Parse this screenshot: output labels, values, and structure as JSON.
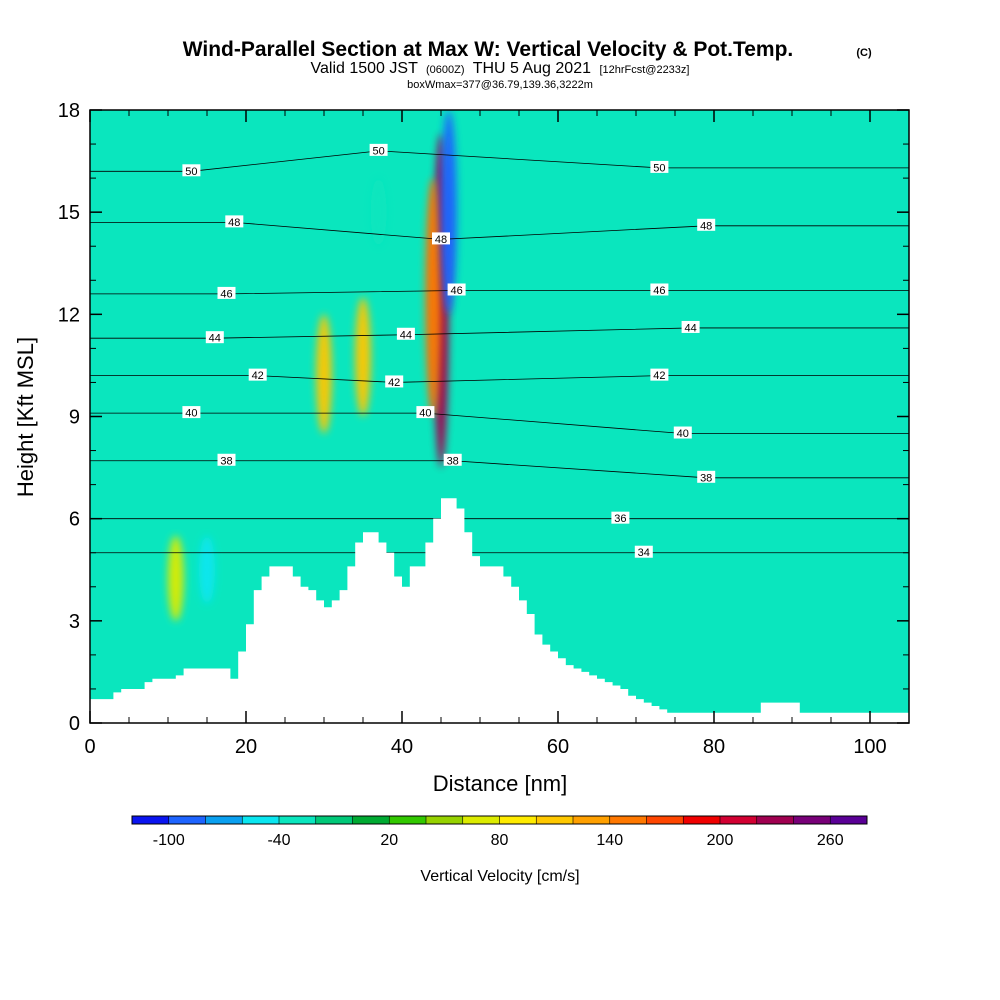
{
  "chart_data": {
    "type": "heatmap",
    "title": {
      "main": "Wind-Parallel Section at Max W: Vertical Velocity & Pot.Temp.",
      "main_suffix": "(C)",
      "line2_a": "Valid 1500 JST",
      "line2_b": "(0600Z)",
      "line2_c": "THU 5 Aug 2021",
      "line2_d": "[12hrFcst@2233z]",
      "line3": "boxWmax=377@36.79,139.36,3222m"
    },
    "xlabel": "Distance [nm]",
    "ylabel": "Height [Kft MSL]",
    "xlim": [
      0,
      105
    ],
    "ylim": [
      0,
      18
    ],
    "x_ticks": [
      0,
      20,
      40,
      60,
      80,
      100
    ],
    "y_ticks": [
      0,
      3,
      6,
      9,
      12,
      15,
      18
    ],
    "colorbar": {
      "label": "Vertical Velocity [cm/s]",
      "tick_labels": [
        "-100",
        "-40",
        "20",
        "80",
        "140",
        "200",
        "260"
      ],
      "colors": [
        "#0a14f0",
        "#1e64ff",
        "#0aa0f0",
        "#0ae6f0",
        "#0ae6be",
        "#00c878",
        "#00aa32",
        "#32c800",
        "#96d200",
        "#dceb00",
        "#ffeb00",
        "#ffc800",
        "#ffa000",
        "#ff7800",
        "#ff4600",
        "#f00000",
        "#d20032",
        "#a00050",
        "#780078",
        "#5a0096"
      ]
    },
    "background_color": "#0ae6be",
    "terrain_kft": [
      [
        0,
        0.7
      ],
      [
        1,
        0.7
      ],
      [
        2,
        0.7
      ],
      [
        3,
        0.9
      ],
      [
        4,
        1.0
      ],
      [
        5,
        1.0
      ],
      [
        6,
        1.0
      ],
      [
        7,
        1.2
      ],
      [
        8,
        1.3
      ],
      [
        9,
        1.3
      ],
      [
        10,
        1.3
      ],
      [
        11,
        1.4
      ],
      [
        12,
        1.6
      ],
      [
        13,
        1.6
      ],
      [
        14,
        1.6
      ],
      [
        15,
        1.6
      ],
      [
        16,
        1.6
      ],
      [
        17,
        1.6
      ],
      [
        18,
        1.3
      ],
      [
        19,
        2.1
      ],
      [
        20,
        2.9
      ],
      [
        21,
        3.9
      ],
      [
        22,
        4.3
      ],
      [
        23,
        4.6
      ],
      [
        24,
        4.6
      ],
      [
        25,
        4.6
      ],
      [
        26,
        4.3
      ],
      [
        27,
        4.0
      ],
      [
        28,
        3.9
      ],
      [
        29,
        3.6
      ],
      [
        30,
        3.4
      ],
      [
        31,
        3.6
      ],
      [
        32,
        3.9
      ],
      [
        33,
        4.6
      ],
      [
        34,
        5.3
      ],
      [
        35,
        5.6
      ],
      [
        36,
        5.6
      ],
      [
        37,
        5.3
      ],
      [
        38,
        5.0
      ],
      [
        39,
        4.3
      ],
      [
        40,
        4.0
      ],
      [
        41,
        4.6
      ],
      [
        42,
        4.6
      ],
      [
        43,
        5.3
      ],
      [
        44,
        6.0
      ],
      [
        45,
        6.6
      ],
      [
        46,
        6.6
      ],
      [
        47,
        6.3
      ],
      [
        48,
        5.6
      ],
      [
        49,
        4.9
      ],
      [
        50,
        4.6
      ],
      [
        51,
        4.6
      ],
      [
        52,
        4.6
      ],
      [
        53,
        4.3
      ],
      [
        54,
        4.0
      ],
      [
        55,
        3.6
      ],
      [
        56,
        3.2
      ],
      [
        57,
        2.6
      ],
      [
        58,
        2.3
      ],
      [
        59,
        2.1
      ],
      [
        60,
        1.9
      ],
      [
        61,
        1.7
      ],
      [
        62,
        1.6
      ],
      [
        63,
        1.5
      ],
      [
        64,
        1.4
      ],
      [
        65,
        1.3
      ],
      [
        66,
        1.2
      ],
      [
        67,
        1.1
      ],
      [
        68,
        1.0
      ],
      [
        69,
        0.8
      ],
      [
        70,
        0.7
      ],
      [
        71,
        0.6
      ],
      [
        72,
        0.5
      ],
      [
        73,
        0.4
      ],
      [
        74,
        0.3
      ],
      [
        75,
        0.3
      ],
      [
        76,
        0.3
      ],
      [
        77,
        0.3
      ],
      [
        78,
        0.3
      ],
      [
        79,
        0.3
      ],
      [
        80,
        0.3
      ],
      [
        81,
        0.3
      ],
      [
        82,
        0.3
      ],
      [
        83,
        0.3
      ],
      [
        84,
        0.3
      ],
      [
        85,
        0.3
      ],
      [
        86,
        0.6
      ],
      [
        87,
        0.6
      ],
      [
        88,
        0.6
      ],
      [
        89,
        0.6
      ],
      [
        90,
        0.6
      ],
      [
        91,
        0.3
      ],
      [
        92,
        0.3
      ],
      [
        95,
        0.3
      ],
      [
        100,
        0.3
      ],
      [
        105,
        0.3
      ]
    ],
    "velocity_features": [
      {
        "x": 45,
        "y_from": 7.5,
        "y_to": 17.3,
        "value": 220
      },
      {
        "x": 44,
        "y_from": 9.0,
        "y_to": 16.0,
        "value": 140
      },
      {
        "x": 30,
        "y_from": 8.5,
        "y_to": 12.0,
        "value": 100
      },
      {
        "x": 35,
        "y_from": 9.0,
        "y_to": 12.5,
        "value": 100
      },
      {
        "x": 46,
        "y_from": 12.0,
        "y_to": 18.0,
        "value": -100
      },
      {
        "x": 15,
        "y_from": 3.5,
        "y_to": 5.5,
        "value": -60
      },
      {
        "x": 11,
        "y_from": 3.0,
        "y_to": 5.5,
        "value": 60
      },
      {
        "x": 37,
        "y_from": 14.0,
        "y_to": 16.0,
        "value": -40
      }
    ],
    "contour_label_values": [
      "50",
      "48",
      "46",
      "44",
      "42",
      "40",
      "38",
      "36",
      "34"
    ],
    "contour_labels": [
      {
        "text": "50",
        "x": 13,
        "y": 16.2
      },
      {
        "text": "50",
        "x": 37,
        "y": 16.8
      },
      {
        "text": "50",
        "x": 73,
        "y": 16.3
      },
      {
        "text": "48",
        "x": 18.5,
        "y": 14.7
      },
      {
        "text": "48",
        "x": 45,
        "y": 14.2
      },
      {
        "text": "48",
        "x": 79,
        "y": 14.6
      },
      {
        "text": "46",
        "x": 17.5,
        "y": 12.6
      },
      {
        "text": "46",
        "x": 47,
        "y": 12.7
      },
      {
        "text": "46",
        "x": 73,
        "y": 12.7
      },
      {
        "text": "44",
        "x": 16,
        "y": 11.3
      },
      {
        "text": "44",
        "x": 40.5,
        "y": 11.4
      },
      {
        "text": "44",
        "x": 77,
        "y": 11.6
      },
      {
        "text": "42",
        "x": 21.5,
        "y": 10.2
      },
      {
        "text": "42",
        "x": 39,
        "y": 10.0
      },
      {
        "text": "42",
        "x": 73,
        "y": 10.2
      },
      {
        "text": "40",
        "x": 13,
        "y": 9.1
      },
      {
        "text": "40",
        "x": 43,
        "y": 9.1
      },
      {
        "text": "40",
        "x": 76,
        "y": 8.5
      },
      {
        "text": "38",
        "x": 17.5,
        "y": 7.7
      },
      {
        "text": "38",
        "x": 46.5,
        "y": 7.7
      },
      {
        "text": "38",
        "x": 79,
        "y": 7.2
      },
      {
        "text": "36",
        "x": 68,
        "y": 6.0
      },
      {
        "text": "34",
        "x": 71,
        "y": 5.0
      }
    ]
  }
}
